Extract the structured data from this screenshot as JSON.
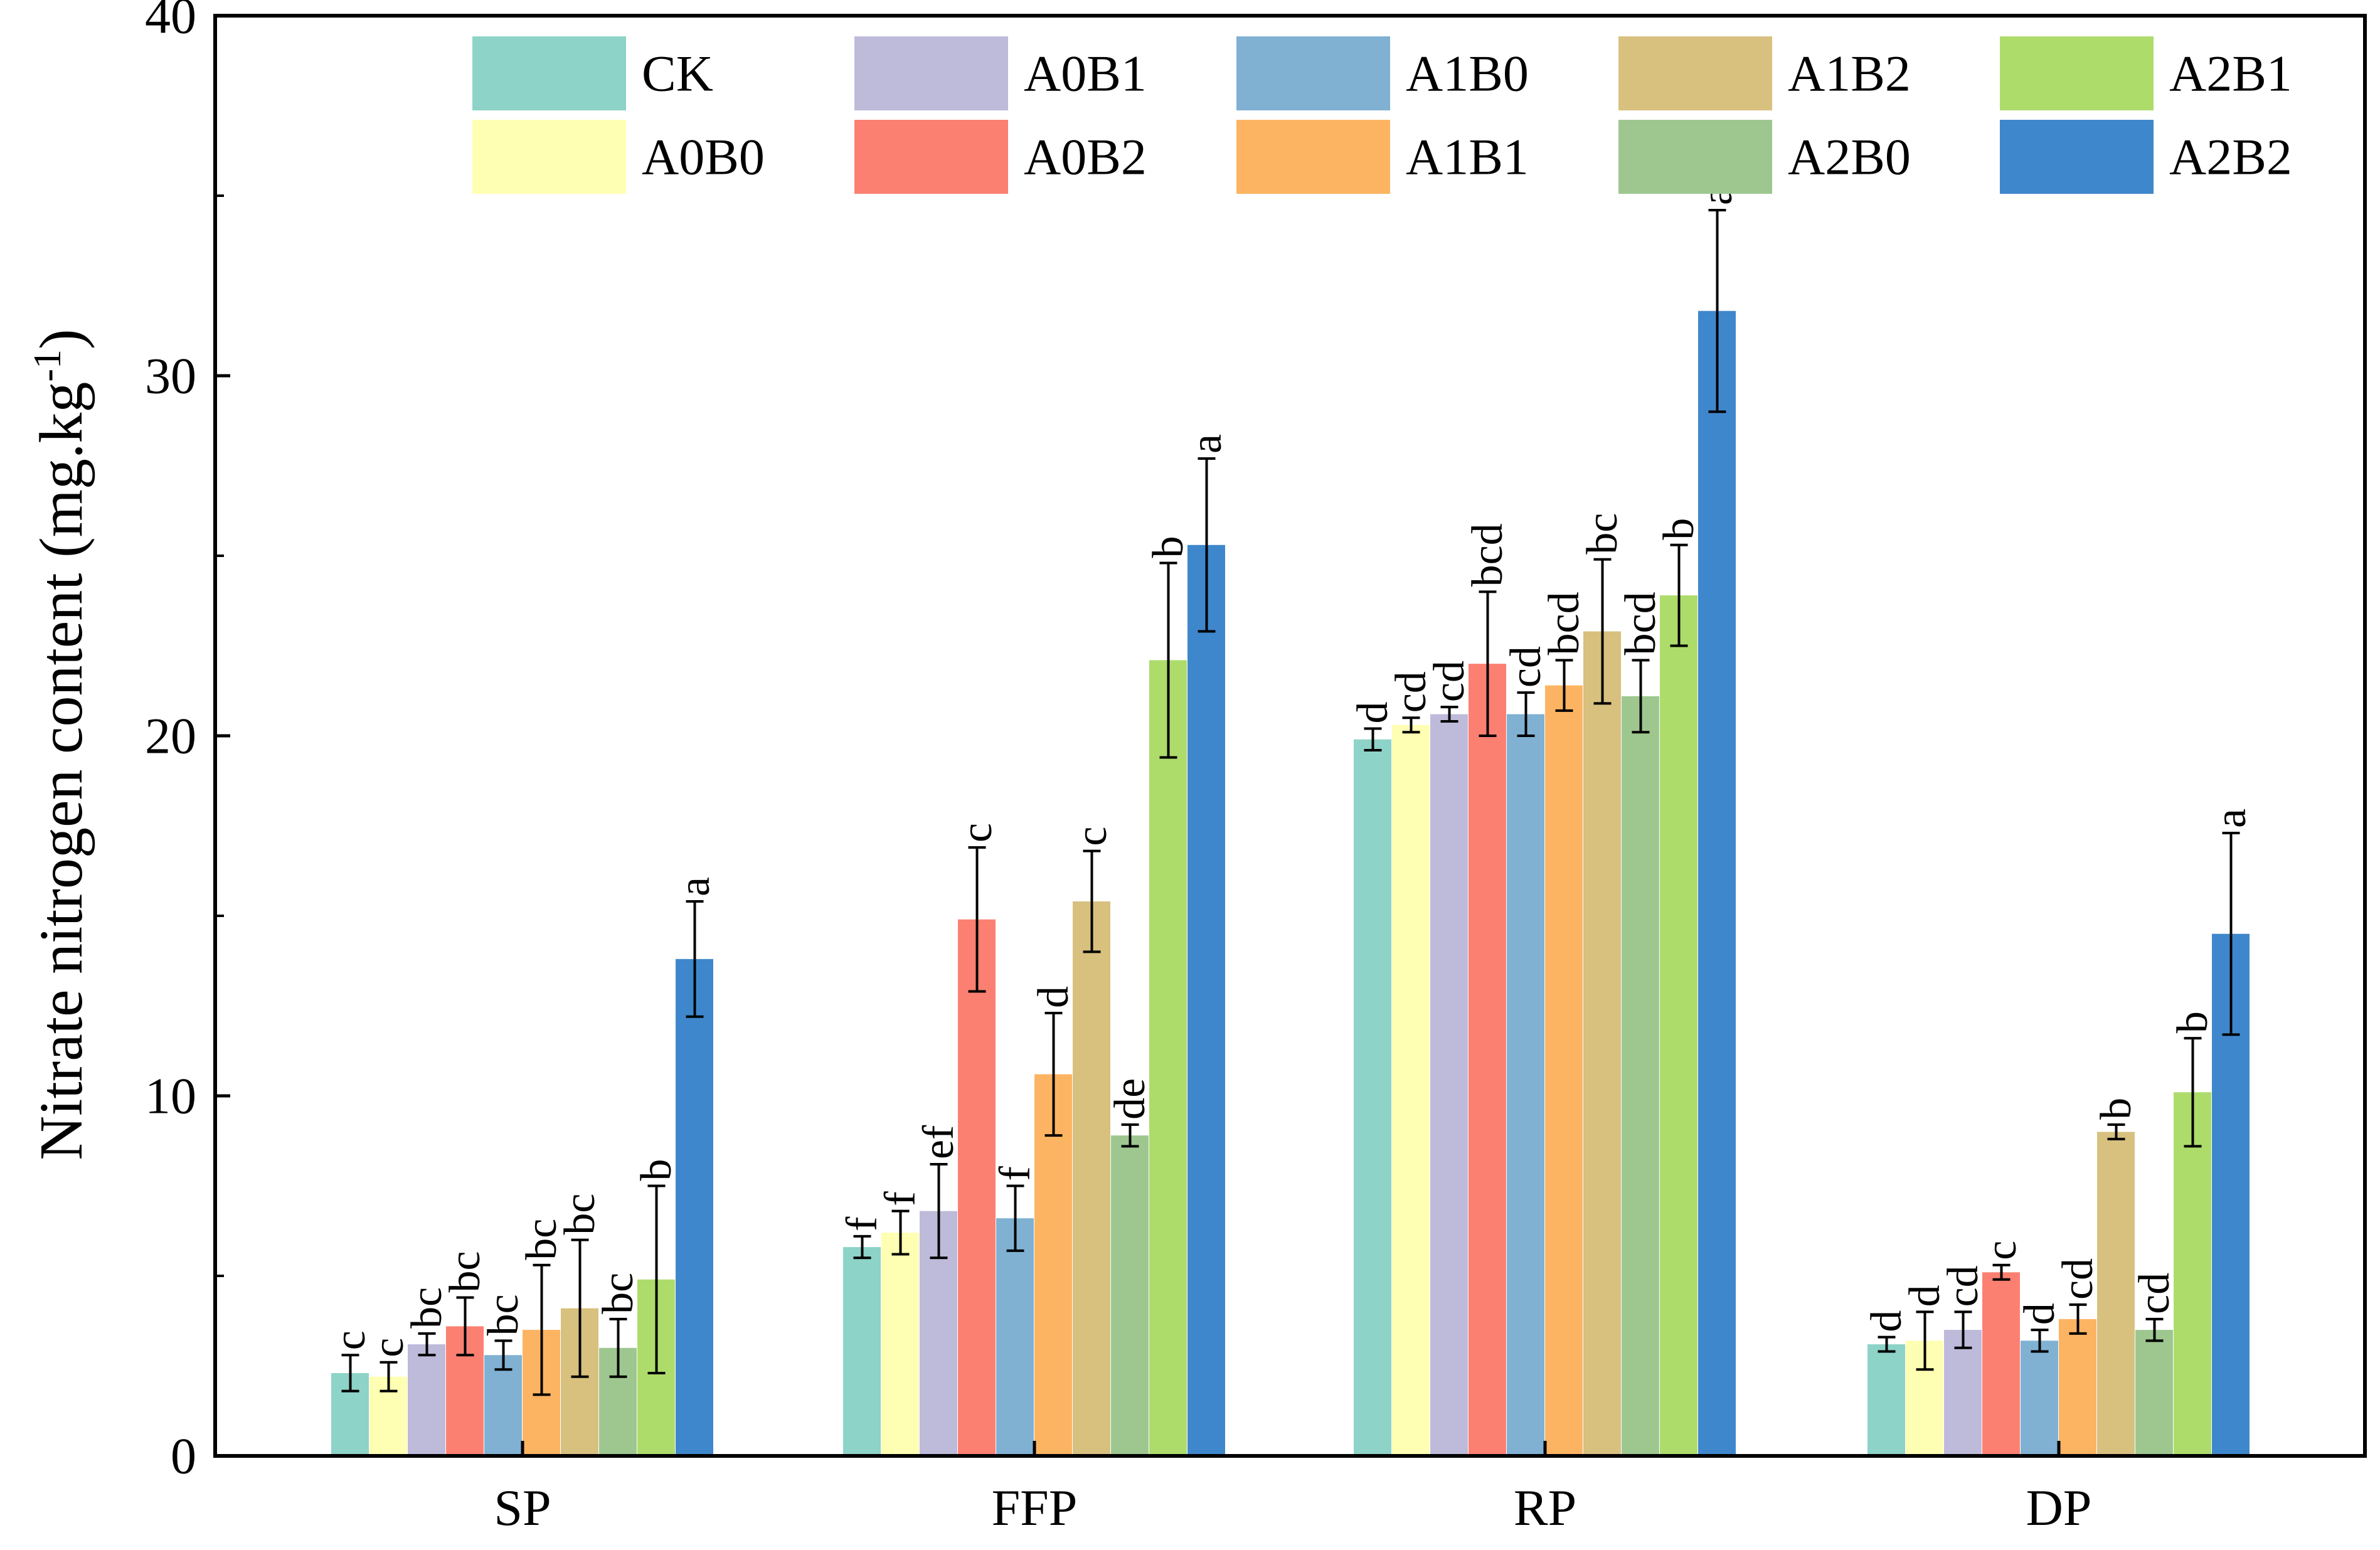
{
  "chart_data": {
    "type": "bar",
    "title": "",
    "xlabel": "",
    "ylabel": "Nitrate nitrogen content (mg.kg",
    "ylabel_sup": "-1",
    "ylabel_close": ")",
    "ylim": [
      0,
      40
    ],
    "yticks": [
      0,
      10,
      20,
      30,
      40
    ],
    "legend_position": "top-right",
    "categories": [
      "SP",
      "FFP",
      "RP",
      "DP"
    ],
    "series": [
      {
        "name": "CK",
        "color": "#8dd3c7",
        "values": [
          2.3,
          5.8,
          19.9,
          3.1
        ],
        "errors": [
          0.5,
          0.3,
          0.3,
          0.2
        ],
        "letters": [
          "c",
          "f",
          "d",
          "d"
        ]
      },
      {
        "name": "A0B0",
        "color": "#ffffb3",
        "values": [
          2.2,
          6.2,
          20.3,
          3.2
        ],
        "errors": [
          0.4,
          0.6,
          0.2,
          0.8
        ],
        "letters": [
          "c",
          "f",
          "cd",
          "d"
        ]
      },
      {
        "name": "A0B1",
        "color": "#bebada",
        "values": [
          3.1,
          6.8,
          20.6,
          3.5
        ],
        "errors": [
          0.3,
          1.3,
          0.2,
          0.5
        ],
        "letters": [
          "bc",
          "ef",
          "cd",
          "cd"
        ]
      },
      {
        "name": "A0B2",
        "color": "#fb8072",
        "values": [
          3.6,
          14.9,
          22.0,
          5.1
        ],
        "errors": [
          0.8,
          2.0,
          2.0,
          0.2
        ],
        "letters": [
          "bc",
          "c",
          "bcd",
          "c"
        ]
      },
      {
        "name": "A1B0",
        "color": "#80b1d3",
        "values": [
          2.8,
          6.6,
          20.6,
          3.2
        ],
        "errors": [
          0.4,
          0.9,
          0.6,
          0.3
        ],
        "letters": [
          "bc",
          "f",
          "cd",
          "d"
        ]
      },
      {
        "name": "A1B1",
        "color": "#fdb462",
        "values": [
          3.5,
          10.6,
          21.4,
          3.8
        ],
        "errors": [
          1.8,
          1.7,
          0.7,
          0.4
        ],
        "letters": [
          "bc",
          "d",
          "bcd",
          "cd"
        ]
      },
      {
        "name": "A1B2",
        "color": "#d8c07f",
        "values": [
          4.1,
          15.4,
          22.9,
          9.0
        ],
        "errors": [
          1.9,
          1.4,
          2.0,
          0.2
        ],
        "letters": [
          "bc",
          "c",
          "bc",
          "b"
        ]
      },
      {
        "name": "A2B0",
        "color": "#9ec790",
        "values": [
          3.0,
          8.9,
          21.1,
          3.5
        ],
        "errors": [
          0.8,
          0.3,
          1.0,
          0.3
        ],
        "letters": [
          "bc",
          "de",
          "bcd",
          "cd"
        ]
      },
      {
        "name": "A2B1",
        "color": "#addc6b",
        "values": [
          4.9,
          22.1,
          23.9,
          10.1
        ],
        "errors": [
          2.6,
          2.7,
          1.4,
          1.5
        ],
        "letters": [
          "b",
          "b",
          "b",
          "b"
        ]
      },
      {
        "name": "A2B2",
        "color": "#3f87cc",
        "values": [
          13.8,
          25.3,
          31.8,
          14.5
        ],
        "errors": [
          1.6,
          2.4,
          2.8,
          2.8
        ],
        "letters": [
          "a",
          "a",
          "a",
          "a"
        ]
      }
    ]
  }
}
